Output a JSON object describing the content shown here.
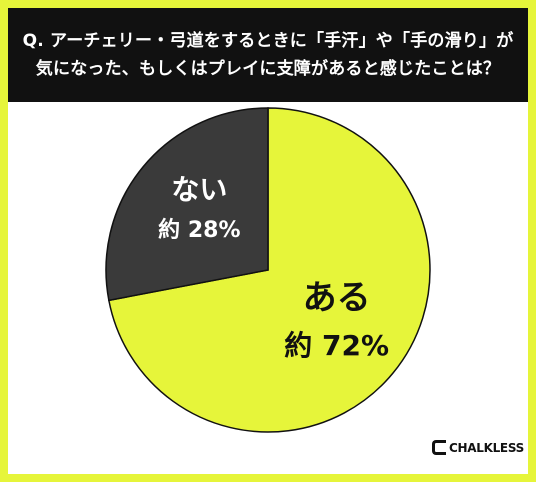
{
  "title": {
    "line1": "Q. アーチェリー・弓道をするときに「手汗」や「手の滑り」が",
    "line2": "気になった、もしくはプレイに支障があると感じたことは？"
  },
  "chart_data": {
    "type": "pie",
    "title": "Q. アーチェリー・弓道をするときに「手汗」や「手の滑り」が気になった、もしくはプレイに支障があると感じたことは？",
    "slices": [
      {
        "label": "ある",
        "value": 72,
        "value_label": "約 72%",
        "color": "#e6f53a"
      },
      {
        "label": "ない",
        "value": 28,
        "value_label": "約 28%",
        "color": "#3a3a3a"
      }
    ]
  },
  "colors": {
    "frame": "#e6f53a",
    "title_bg": "#111111",
    "title_text": "#ffffff",
    "edge": "#111111"
  },
  "logo": {
    "text": "CHALKLESS",
    "icon": "chalkless-c-icon"
  }
}
